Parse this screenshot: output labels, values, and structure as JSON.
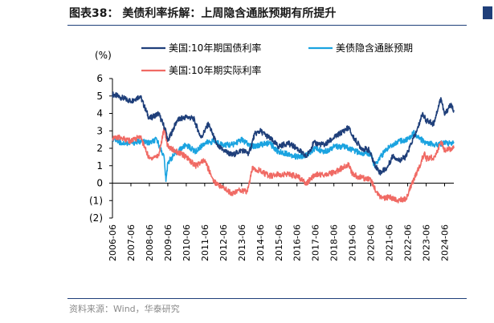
{
  "figure": {
    "title": "图表38： 美债利率拆解：上周隐含通胀预期有所提升",
    "source": "资料来源：Wind，华泰研究"
  },
  "chart_data": {
    "type": "line",
    "ylabel": "(%)",
    "ylim": [
      -2,
      6
    ],
    "y_ticks": [
      6,
      5,
      4,
      3,
      2,
      1,
      0,
      -1,
      -2
    ],
    "y_tick_labels": [
      "6",
      "5",
      "4",
      "3",
      "2",
      "1",
      "0",
      "(1)",
      "(2)"
    ],
    "x_tick_labels": [
      "2006-06",
      "2007-06",
      "2008-06",
      "2009-06",
      "2010-06",
      "2011-06",
      "2012-06",
      "2013-06",
      "2014-06",
      "2015-06",
      "2016-06",
      "2017-06",
      "2018-06",
      "2019-06",
      "2020-06",
      "2021-06",
      "2022-06",
      "2023-06",
      "2024-06"
    ],
    "legend_position": "top",
    "grid": false,
    "series": [
      {
        "name": "美国:10年期国债利率",
        "color": "#1f3f7a",
        "x": [
          2006.0,
          2006.5,
          2007.0,
          2007.5,
          2008.0,
          2008.5,
          2008.9,
          2009.0,
          2009.5,
          2010.0,
          2010.4,
          2010.8,
          2011.2,
          2011.7,
          2012.0,
          2012.5,
          2013.0,
          2013.4,
          2013.7,
          2014.0,
          2014.5,
          2015.0,
          2015.5,
          2016.0,
          2016.5,
          2016.9,
          2017.5,
          2018.0,
          2018.8,
          2019.0,
          2019.5,
          2019.9,
          2020.2,
          2020.5,
          2020.9,
          2021.2,
          2021.5,
          2021.9,
          2022.2,
          2022.5,
          2022.8,
          2023.0,
          2023.4,
          2023.8,
          2024.0,
          2024.3,
          2024.5
        ],
        "values": [
          5.1,
          4.9,
          4.7,
          5.0,
          3.7,
          4.0,
          3.0,
          2.4,
          3.6,
          3.8,
          3.7,
          2.6,
          3.4,
          2.1,
          1.9,
          1.6,
          1.9,
          1.7,
          2.8,
          3.0,
          2.6,
          2.1,
          2.3,
          2.0,
          1.5,
          2.3,
          2.2,
          2.6,
          3.2,
          2.7,
          2.0,
          1.9,
          1.1,
          0.6,
          0.9,
          1.6,
          1.3,
          1.5,
          2.3,
          3.0,
          4.0,
          3.6,
          3.4,
          4.9,
          3.9,
          4.5,
          4.2
        ]
      },
      {
        "name": "美债隐含通胀预期",
        "color": "#1aa3e0",
        "x": [
          2006.0,
          2006.5,
          2007.0,
          2007.5,
          2008.0,
          2008.4,
          2008.8,
          2008.9,
          2009.0,
          2009.5,
          2010.0,
          2010.5,
          2011.0,
          2011.5,
          2012.0,
          2012.5,
          2013.0,
          2013.5,
          2014.0,
          2014.5,
          2015.0,
          2015.5,
          2016.0,
          2016.5,
          2017.0,
          2017.5,
          2018.0,
          2018.5,
          2019.0,
          2019.5,
          2020.0,
          2020.2,
          2020.5,
          2021.0,
          2021.5,
          2022.0,
          2022.3,
          2022.6,
          2023.0,
          2023.5,
          2024.0,
          2024.5
        ],
        "values": [
          2.6,
          2.3,
          2.3,
          2.4,
          2.3,
          2.5,
          1.5,
          0.1,
          1.2,
          1.8,
          2.2,
          1.8,
          2.3,
          2.4,
          2.2,
          2.2,
          2.5,
          2.1,
          2.2,
          2.3,
          1.8,
          1.7,
          1.5,
          1.6,
          2.0,
          1.8,
          2.1,
          2.1,
          1.9,
          1.7,
          1.7,
          1.0,
          1.5,
          2.1,
          2.4,
          2.5,
          2.9,
          2.6,
          2.3,
          2.2,
          2.3,
          2.3
        ]
      },
      {
        "name": "美国:10年期实际利率",
        "color": "#f06a64",
        "x": [
          2006.0,
          2006.5,
          2007.0,
          2007.5,
          2008.0,
          2008.5,
          2008.8,
          2008.9,
          2009.0,
          2009.5,
          2010.0,
          2010.5,
          2011.0,
          2011.5,
          2011.9,
          2012.5,
          2012.9,
          2013.3,
          2013.6,
          2014.0,
          2014.5,
          2015.0,
          2015.5,
          2016.0,
          2016.5,
          2017.0,
          2017.5,
          2018.0,
          2018.8,
          2019.0,
          2019.5,
          2020.0,
          2020.3,
          2020.6,
          2021.0,
          2021.5,
          2021.9,
          2022.2,
          2022.5,
          2022.9,
          2023.0,
          2023.5,
          2023.8,
          2024.0,
          2024.5
        ],
        "values": [
          2.6,
          2.6,
          2.4,
          2.7,
          1.4,
          1.6,
          3.1,
          2.6,
          2.1,
          1.8,
          1.5,
          1.0,
          1.3,
          0.1,
          -0.2,
          -0.6,
          -0.4,
          -0.5,
          0.9,
          0.7,
          0.4,
          0.5,
          0.5,
          0.4,
          0.0,
          0.5,
          0.5,
          0.6,
          1.1,
          0.5,
          0.3,
          0.2,
          -0.5,
          -0.9,
          -0.8,
          -1.0,
          -0.9,
          -0.1,
          0.6,
          1.7,
          1.4,
          1.5,
          2.4,
          1.9,
          2.0
        ]
      }
    ]
  }
}
